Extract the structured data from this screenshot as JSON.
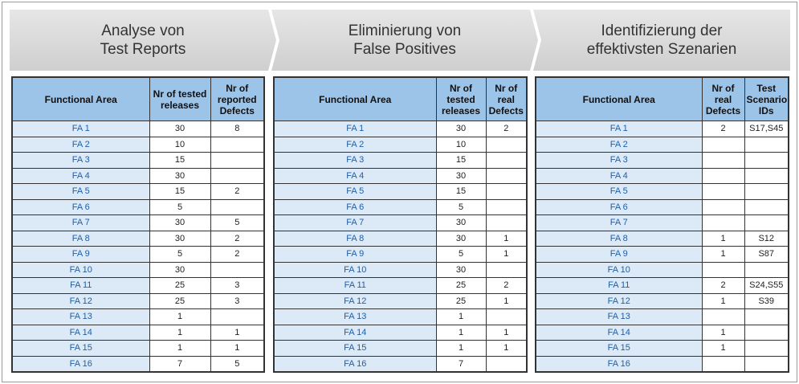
{
  "panels": [
    {
      "title": [
        "Analyse von",
        "Test Reports"
      ],
      "columns": [
        "Functional Area",
        "Nr of tested releases",
        "Nr of reported Defects"
      ],
      "rows": [
        [
          "FA 1",
          30,
          8
        ],
        [
          "FA 2",
          10,
          null
        ],
        [
          "FA 3",
          15,
          null
        ],
        [
          "FA 4",
          30,
          null
        ],
        [
          "FA 5",
          15,
          2
        ],
        [
          "FA 6",
          5,
          null
        ],
        [
          "FA 7",
          30,
          5
        ],
        [
          "FA 8",
          30,
          2
        ],
        [
          "FA 9",
          5,
          2
        ],
        [
          "FA 10",
          30,
          null
        ],
        [
          "FA 11",
          25,
          3
        ],
        [
          "FA 12",
          25,
          3
        ],
        [
          "FA 13",
          1,
          null
        ],
        [
          "FA 14",
          1,
          1
        ],
        [
          "FA 15",
          1,
          1
        ],
        [
          "FA 16",
          7,
          5
        ]
      ]
    },
    {
      "title": [
        "Eliminierung von",
        "False Positives"
      ],
      "columns": [
        "Functional Area",
        "Nr of tested releases",
        "Nr of real Defects"
      ],
      "rows": [
        [
          "FA 1",
          30,
          2
        ],
        [
          "FA 2",
          10,
          null
        ],
        [
          "FA 3",
          15,
          null
        ],
        [
          "FA 4",
          30,
          null
        ],
        [
          "FA 5",
          15,
          null
        ],
        [
          "FA 6",
          5,
          null
        ],
        [
          "FA 7",
          30,
          null
        ],
        [
          "FA 8",
          30,
          1
        ],
        [
          "FA 9",
          5,
          1
        ],
        [
          "FA 10",
          30,
          null
        ],
        [
          "FA 11",
          25,
          2
        ],
        [
          "FA 12",
          25,
          1
        ],
        [
          "FA 13",
          1,
          null
        ],
        [
          "FA 14",
          1,
          1
        ],
        [
          "FA 15",
          1,
          1
        ],
        [
          "FA 16",
          7,
          null
        ]
      ]
    },
    {
      "title": [
        "Identifizierung der",
        "effektivsten Szenarien"
      ],
      "columns": [
        "Functional Area",
        "Nr of real Defects",
        "Test Scenario IDs"
      ],
      "rows": [
        [
          "FA 1",
          2,
          "S17,S45"
        ],
        [
          "FA 2",
          null,
          null
        ],
        [
          "FA 3",
          null,
          null
        ],
        [
          "FA 4",
          null,
          null
        ],
        [
          "FA 5",
          null,
          null
        ],
        [
          "FA 6",
          null,
          null
        ],
        [
          "FA 7",
          null,
          null
        ],
        [
          "FA 8",
          1,
          "S12"
        ],
        [
          "FA 9",
          1,
          "S87"
        ],
        [
          "FA 10",
          null,
          null
        ],
        [
          "FA 11",
          2,
          "S24,S55"
        ],
        [
          "FA 12",
          1,
          "S39"
        ],
        [
          "FA 13",
          null,
          null
        ],
        [
          "FA 14",
          1,
          null
        ],
        [
          "FA 15",
          1,
          null
        ],
        [
          "FA 16",
          null,
          null
        ]
      ]
    }
  ]
}
